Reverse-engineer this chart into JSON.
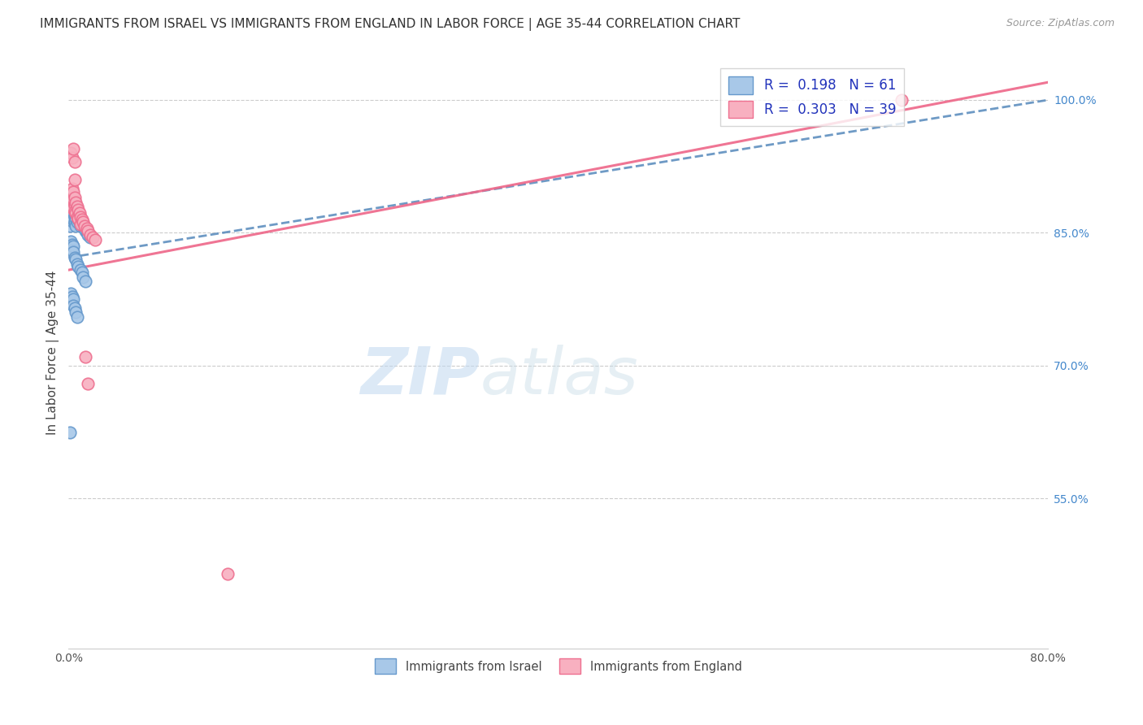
{
  "title": "IMMIGRANTS FROM ISRAEL VS IMMIGRANTS FROM ENGLAND IN LABOR FORCE | AGE 35-44 CORRELATION CHART",
  "source": "Source: ZipAtlas.com",
  "ylabel": "In Labor Force | Age 35-44",
  "xlim": [
    0.0,
    0.8
  ],
  "ylim": [
    0.38,
    1.05
  ],
  "xticks": [
    0.0,
    0.1,
    0.2,
    0.3,
    0.4,
    0.5,
    0.6,
    0.7,
    0.8
  ],
  "xticklabels": [
    "0.0%",
    "",
    "",
    "",
    "",
    "",
    "",
    "",
    "80.0%"
  ],
  "yticks_right": [
    1.0,
    0.85,
    0.7,
    0.55
  ],
  "ytick_right_labels": [
    "100.0%",
    "85.0%",
    "70.0%",
    "55.0%"
  ],
  "israel_color": "#a8c8e8",
  "england_color": "#f8b0c0",
  "israel_edge_color": "#6699cc",
  "england_edge_color": "#ee7090",
  "israel_line_color": "#5588bb",
  "england_line_color": "#ee6688",
  "legend_R_israel": "R =  0.198",
  "legend_N_israel": "N = 61",
  "legend_R_england": "R =  0.303",
  "legend_N_england": "N = 39",
  "watermark_zip": "ZIP",
  "watermark_atlas": "atlas",
  "israel_trendline": [
    0.0,
    0.822,
    0.8,
    1.0
  ],
  "england_trendline": [
    0.0,
    0.808,
    0.8,
    1.02
  ],
  "israel_x": [
    0.001,
    0.001,
    0.001,
    0.002,
    0.002,
    0.002,
    0.002,
    0.003,
    0.003,
    0.003,
    0.003,
    0.003,
    0.004,
    0.004,
    0.004,
    0.004,
    0.005,
    0.005,
    0.005,
    0.005,
    0.006,
    0.006,
    0.006,
    0.006,
    0.007,
    0.007,
    0.007,
    0.008,
    0.008,
    0.009,
    0.009,
    0.01,
    0.01,
    0.011,
    0.012,
    0.013,
    0.014,
    0.015,
    0.016,
    0.018,
    0.002,
    0.003,
    0.003,
    0.004,
    0.004,
    0.005,
    0.006,
    0.007,
    0.008,
    0.01,
    0.011,
    0.012,
    0.014,
    0.002,
    0.003,
    0.004,
    0.004,
    0.005,
    0.006,
    0.007,
    0.001
  ],
  "israel_y": [
    0.878,
    0.868,
    0.858,
    0.885,
    0.88,
    0.872,
    0.865,
    0.89,
    0.883,
    0.877,
    0.87,
    0.863,
    0.887,
    0.88,
    0.873,
    0.865,
    0.883,
    0.876,
    0.869,
    0.862,
    0.88,
    0.873,
    0.866,
    0.858,
    0.876,
    0.869,
    0.862,
    0.872,
    0.865,
    0.868,
    0.862,
    0.865,
    0.858,
    0.862,
    0.858,
    0.855,
    0.852,
    0.85,
    0.848,
    0.845,
    0.84,
    0.837,
    0.83,
    0.835,
    0.828,
    0.822,
    0.82,
    0.815,
    0.812,
    0.808,
    0.805,
    0.8,
    0.795,
    0.782,
    0.778,
    0.775,
    0.768,
    0.765,
    0.76,
    0.755,
    0.625
  ],
  "england_x": [
    0.001,
    0.002,
    0.002,
    0.002,
    0.003,
    0.003,
    0.003,
    0.004,
    0.004,
    0.004,
    0.005,
    0.005,
    0.005,
    0.006,
    0.006,
    0.007,
    0.007,
    0.008,
    0.008,
    0.009,
    0.01,
    0.01,
    0.011,
    0.012,
    0.013,
    0.015,
    0.016,
    0.018,
    0.02,
    0.022,
    0.002,
    0.003,
    0.004,
    0.005,
    0.005,
    0.014,
    0.016,
    0.68,
    0.13
  ],
  "england_y": [
    0.89,
    0.893,
    0.883,
    0.896,
    0.886,
    0.9,
    0.878,
    0.888,
    0.896,
    0.878,
    0.882,
    0.89,
    0.874,
    0.884,
    0.872,
    0.88,
    0.868,
    0.876,
    0.866,
    0.872,
    0.868,
    0.86,
    0.865,
    0.862,
    0.858,
    0.855,
    0.852,
    0.848,
    0.845,
    0.842,
    0.94,
    0.935,
    0.945,
    0.93,
    0.91,
    0.71,
    0.68,
    1.0,
    0.465
  ]
}
